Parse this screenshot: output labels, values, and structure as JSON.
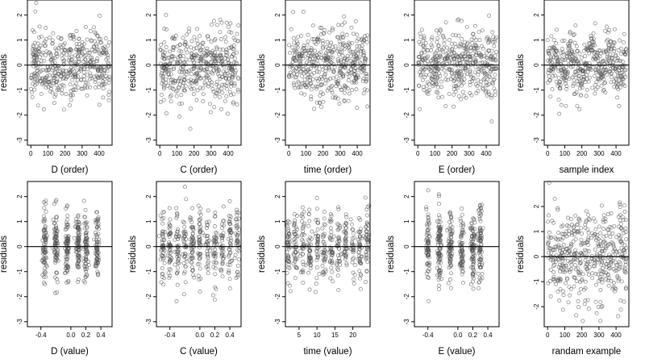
{
  "chart_data": [
    {
      "type": "scatter",
      "panel": "D-order",
      "xlabel": "D (order)",
      "ylabel": "residuals",
      "xlim": [
        -20,
        475
      ],
      "ylim": [
        -3.2,
        2.6
      ],
      "xticks": [
        0,
        100,
        200,
        300,
        400
      ],
      "xtick_labels": [
        "0",
        "100",
        "200",
        "300",
        "400"
      ],
      "yticks": [
        -3,
        -2,
        -1,
        0,
        1,
        2
      ],
      "ytick_labels": [
        "-3",
        "-2",
        "-1",
        "0",
        "1",
        "2"
      ],
      "reference_line": 0,
      "gen": "order",
      "seed": 11,
      "n": 460
    },
    {
      "type": "scatter",
      "panel": "C-order",
      "xlabel": "C (order)",
      "ylabel": "residuals",
      "xlim": [
        -20,
        475
      ],
      "ylim": [
        -3.2,
        2.6
      ],
      "xticks": [
        0,
        100,
        200,
        300,
        400
      ],
      "xtick_labels": [
        "0",
        "100",
        "200",
        "300",
        "400"
      ],
      "yticks": [
        -3,
        -2,
        -1,
        0,
        1,
        2
      ],
      "ytick_labels": [
        "-3",
        "-2",
        "-1",
        "0",
        "1",
        "2"
      ],
      "reference_line": 0,
      "gen": "order",
      "seed": 23,
      "n": 460
    },
    {
      "type": "scatter",
      "panel": "time-order",
      "xlabel": "time (order)",
      "ylabel": "residuals",
      "xlim": [
        -20,
        475
      ],
      "ylim": [
        -3.2,
        2.6
      ],
      "xticks": [
        0,
        100,
        200,
        300,
        400
      ],
      "xtick_labels": [
        "0",
        "100",
        "200",
        "300",
        "400"
      ],
      "yticks": [
        -3,
        -2,
        -1,
        0,
        1,
        2
      ],
      "ytick_labels": [
        "-3",
        "-2",
        "-1",
        "0",
        "1",
        "2"
      ],
      "reference_line": 0,
      "gen": "order",
      "seed": 37,
      "n": 460
    },
    {
      "type": "scatter",
      "panel": "E-order",
      "xlabel": "E (order)",
      "ylabel": "residuals",
      "xlim": [
        -20,
        475
      ],
      "ylim": [
        -3.2,
        2.6
      ],
      "xticks": [
        0,
        100,
        200,
        300,
        400
      ],
      "xtick_labels": [
        "0",
        "100",
        "200",
        "300",
        "400"
      ],
      "yticks": [
        -3,
        -2,
        -1,
        0,
        1,
        2
      ],
      "ytick_labels": [
        "-3",
        "-2",
        "-1",
        "0",
        "1",
        "2"
      ],
      "reference_line": 0,
      "gen": "order",
      "seed": 41,
      "n": 460
    },
    {
      "type": "scatter",
      "panel": "sample-index",
      "xlabel": "sample index",
      "ylabel": "residuals",
      "xlim": [
        -20,
        475
      ],
      "ylim": [
        -3.2,
        2.6
      ],
      "xticks": [
        0,
        100,
        200,
        300,
        400
      ],
      "xtick_labels": [
        "0",
        "100",
        "200",
        "300",
        "400"
      ],
      "yticks": [
        -3,
        -2,
        -1,
        0,
        1,
        2
      ],
      "ytick_labels": [
        "-3",
        "-2",
        "-1",
        "0",
        "1",
        "2"
      ],
      "reference_line": 0,
      "gen": "index",
      "seed": 53,
      "n": 460
    },
    {
      "type": "scatter",
      "panel": "D-value",
      "xlabel": "D (value)",
      "ylabel": "residuals",
      "xlim": [
        -0.58,
        0.55
      ],
      "ylim": [
        -3.2,
        2.6
      ],
      "xticks": [
        -0.4,
        0,
        0.2,
        0.4
      ],
      "xtick_labels": [
        "-0.4",
        "0.0",
        "0.2",
        "0.4"
      ],
      "yticks": [
        -3,
        -2,
        -1,
        0,
        1,
        2
      ],
      "ytick_labels": [
        "-3",
        "-2",
        "-1",
        "0",
        "1",
        "2"
      ],
      "reference_line": 0,
      "gen": "value",
      "cluster_centers": [
        -0.35,
        -0.2,
        -0.05,
        0.1,
        0.2,
        0.35
      ],
      "seed": 61,
      "n": 460
    },
    {
      "type": "scatter",
      "panel": "C-value",
      "xlabel": "C (value)",
      "ylabel": "residuals",
      "xlim": [
        -0.58,
        0.55
      ],
      "ylim": [
        -3.2,
        2.6
      ],
      "xticks": [
        -0.4,
        0,
        0.2,
        0.4
      ],
      "xtick_labels": [
        "-0.4",
        "0.0",
        "0.2",
        "0.4"
      ],
      "yticks": [
        -3,
        -2,
        -1,
        0,
        1,
        2
      ],
      "ytick_labels": [
        "-3",
        "-2",
        "-1",
        "0",
        "1",
        "2"
      ],
      "reference_line": 0,
      "gen": "value",
      "cluster_centers": [
        -0.5,
        -0.4,
        -0.3,
        -0.2,
        -0.1,
        0.0,
        0.1,
        0.2,
        0.3,
        0.4,
        0.5
      ],
      "seed": 67,
      "n": 460
    },
    {
      "type": "scatter",
      "panel": "time-value",
      "xlabel": "time (value)",
      "ylabel": "residuals",
      "xlim": [
        1.2,
        24.8
      ],
      "ylim": [
        -3.2,
        2.6
      ],
      "xticks": [
        5,
        10,
        15,
        20
      ],
      "xtick_labels": [
        "5",
        "10",
        "15",
        "20"
      ],
      "yticks": [
        -3,
        -2,
        -1,
        0,
        1,
        2
      ],
      "ytick_labels": [
        "-3",
        "-2",
        "-1",
        "0",
        "1",
        "2"
      ],
      "reference_line": 0,
      "gen": "value",
      "cluster_centers": [
        2,
        4,
        6,
        8,
        10,
        12,
        14,
        16,
        18,
        20,
        22,
        24
      ],
      "seed": 71,
      "n": 460
    },
    {
      "type": "scatter",
      "panel": "E-value",
      "xlabel": "E (value)",
      "ylabel": "residuals",
      "xlim": [
        -0.58,
        0.55
      ],
      "ylim": [
        -3.2,
        2.6
      ],
      "xticks": [
        -0.4,
        0,
        0.2,
        0.4
      ],
      "xtick_labels": [
        "-0.4",
        "0.0",
        "0.2",
        "0.4"
      ],
      "yticks": [
        -3,
        -2,
        -1,
        0,
        1,
        2
      ],
      "ytick_labels": [
        "-3",
        "-2",
        "-1",
        "0",
        "1",
        "2"
      ],
      "reference_line": 0,
      "gen": "value",
      "cluster_centers": [
        -0.4,
        -0.25,
        -0.1,
        0.05,
        0.2,
        0.3
      ],
      "seed": 79,
      "n": 460
    },
    {
      "type": "scatter",
      "panel": "random-example",
      "xlabel": "randam example",
      "ylabel": "residuals",
      "xlim": [
        -20,
        475
      ],
      "ylim": [
        -2.8,
        3.0
      ],
      "xticks": [
        0,
        100,
        200,
        300,
        400
      ],
      "xtick_labels": [
        "0",
        "100",
        "200",
        "300",
        "400"
      ],
      "yticks": [
        -2,
        -1,
        0,
        1,
        2
      ],
      "ytick_labels": [
        "-2",
        "-1",
        "0",
        "1",
        "2"
      ],
      "reference_line": 0,
      "gen": "random",
      "seed": 97,
      "n": 460
    }
  ]
}
